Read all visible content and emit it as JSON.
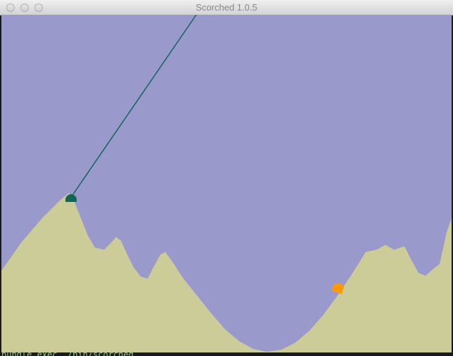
{
  "window": {
    "title": "Scorched 1.0.5"
  },
  "terminal": {
    "text": "bundle exec ./bin/scorched"
  }
}
